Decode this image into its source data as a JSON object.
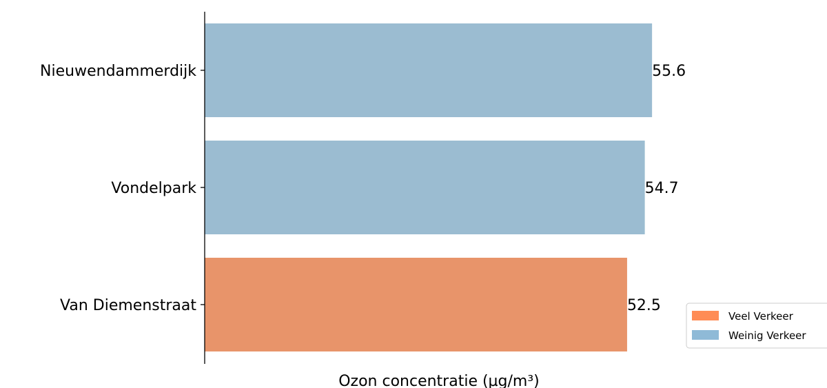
{
  "chart_data": {
    "type": "bar",
    "orientation": "horizontal",
    "categories": [
      "Nieuwendammerdijk",
      "Vondelpark",
      "Van Diemenstraat"
    ],
    "values": [
      55.6,
      54.7,
      52.5
    ],
    "category_group": [
      "Weinig Verkeer",
      "Weinig Verkeer",
      "Veel Verkeer"
    ],
    "data_labels": [
      "55.6",
      "54.7",
      "52.5"
    ],
    "xlabel": "Ozon concentratie (µg/m³)",
    "ylabel": "",
    "title": "",
    "xlim": [
      0,
      60
    ],
    "grid": false,
    "x_axis_ticks_visible": false,
    "legend": {
      "position": "lower-right",
      "entries": [
        {
          "label": "Veel Verkeer",
          "color": "#ff8c55"
        },
        {
          "label": "Weinig Verkeer",
          "color": "#8fbad7"
        }
      ]
    },
    "bar_colors": {
      "Veel Verkeer": "#e8946a",
      "Weinig Verkeer": "#9bbcd1"
    }
  }
}
